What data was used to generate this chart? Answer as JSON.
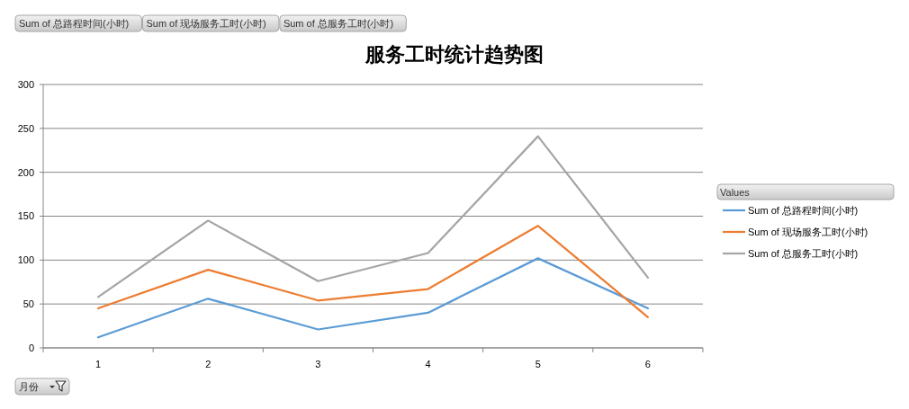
{
  "chart_data": {
    "type": "line",
    "title": "服务工时统计趋势图",
    "xlabel": "月份",
    "legend_title": "Values",
    "categories": [
      "1",
      "2",
      "3",
      "4",
      "5",
      "6"
    ],
    "series": [
      {
        "name": "Sum of 总路程时间(小时)",
        "color": "#5b9bd5",
        "values": [
          12,
          56,
          21,
          40,
          102,
          45
        ]
      },
      {
        "name": "Sum of 现场服务工时(小时)",
        "color": "#ed7d31",
        "values": [
          45,
          89,
          54,
          67,
          139,
          35
        ]
      },
      {
        "name": "Sum of 总服务工时(小时)",
        "color": "#a5a5a5",
        "values": [
          58,
          145,
          76,
          108,
          241,
          80
        ]
      }
    ],
    "ylim": [
      0,
      300
    ],
    "yticks": [
      0,
      50,
      100,
      150,
      200,
      250,
      300
    ],
    "grid": "y",
    "legend": "right"
  }
}
